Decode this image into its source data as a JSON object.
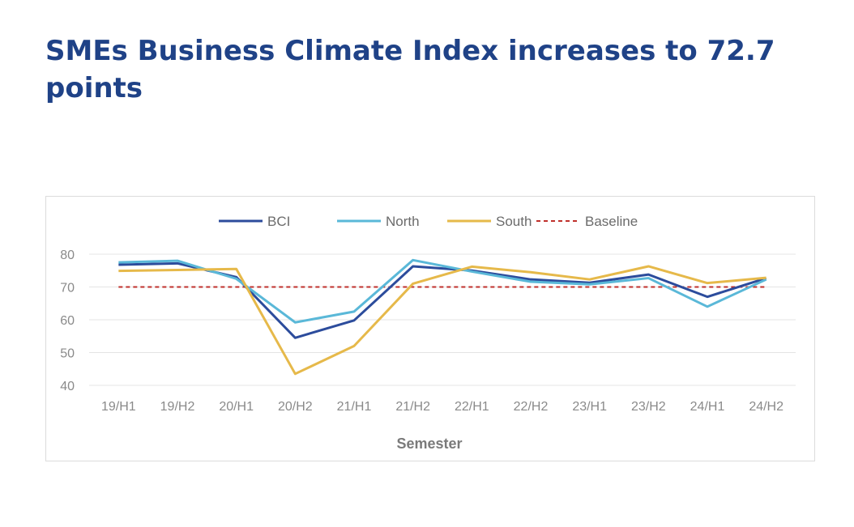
{
  "page": {
    "headline": "SMEs Business Climate Index increases to 72.7 points"
  },
  "chart_data": {
    "type": "line",
    "categories": [
      "19/H1",
      "19/H2",
      "20/H1",
      "20/H2",
      "21/H1",
      "21/H2",
      "22/H1",
      "22/H2",
      "23/H1",
      "23/H2",
      "24/H1",
      "24/H2"
    ],
    "series": [
      {
        "name": "BCI",
        "color": "#2c4c9c",
        "dash": false,
        "values": [
          76.8,
          77.2,
          73.0,
          54.5,
          59.8,
          76.3,
          75.0,
          72.3,
          71.3,
          73.8,
          67.0,
          72.7
        ]
      },
      {
        "name": "North",
        "color": "#5ab8d8",
        "dash": false,
        "values": [
          77.5,
          78.0,
          72.5,
          59.2,
          62.5,
          78.2,
          74.7,
          71.6,
          70.8,
          72.7,
          64.0,
          72.3
        ]
      },
      {
        "name": "South",
        "color": "#e6b94a",
        "dash": false,
        "values": [
          74.9,
          75.2,
          75.5,
          43.5,
          52.0,
          71.0,
          76.2,
          74.5,
          72.3,
          76.3,
          71.2,
          72.8
        ]
      },
      {
        "name": "Baseline",
        "color": "#c0302c",
        "dash": true,
        "values": [
          70,
          70,
          70,
          70,
          70,
          70,
          70,
          70,
          70,
          70,
          70,
          70
        ]
      }
    ],
    "xlabel": "Semester",
    "ylabel": "",
    "ylim": [
      40,
      80
    ],
    "yticks": [
      40,
      50,
      60,
      70,
      80
    ],
    "grid": true,
    "legend_position": "top"
  }
}
